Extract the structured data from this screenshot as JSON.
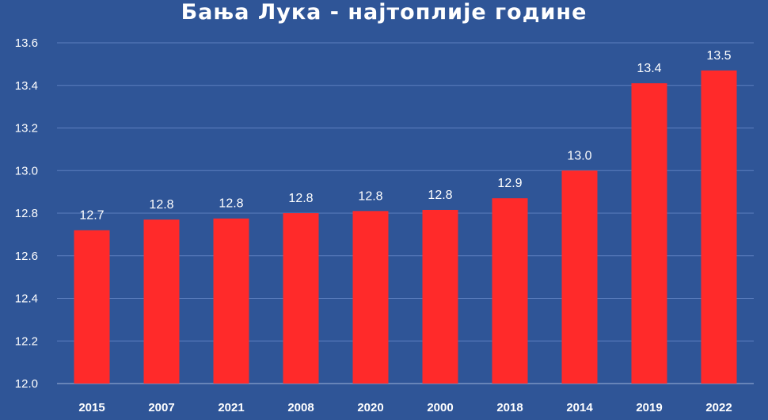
{
  "chart_data": {
    "type": "bar",
    "title": "Бања Лука  - најтоплије  године",
    "categories": [
      "2015",
      "2007",
      "2021",
      "2008",
      "2020",
      "2000",
      "2018",
      "2014",
      "2019",
      "2022"
    ],
    "values": [
      12.72,
      12.77,
      12.775,
      12.8,
      12.81,
      12.815,
      12.87,
      13.0,
      13.41,
      13.47
    ],
    "data_labels": [
      "12.7",
      "12.8",
      "12.8",
      "12.8",
      "12.8",
      "12.8",
      "12.9",
      "13.0",
      "13.4",
      "13.5"
    ],
    "yticks": [
      "12.0",
      "12.2",
      "12.4",
      "12.6",
      "12.8",
      "13.0",
      "13.2",
      "13.4",
      "13.6"
    ],
    "ylim": [
      12.0,
      13.6
    ],
    "grid": true,
    "colors": {
      "background": "#2f5597",
      "bar": "#ff2a2a",
      "text": "#ffffff",
      "grid": "#5d7fbf"
    }
  }
}
